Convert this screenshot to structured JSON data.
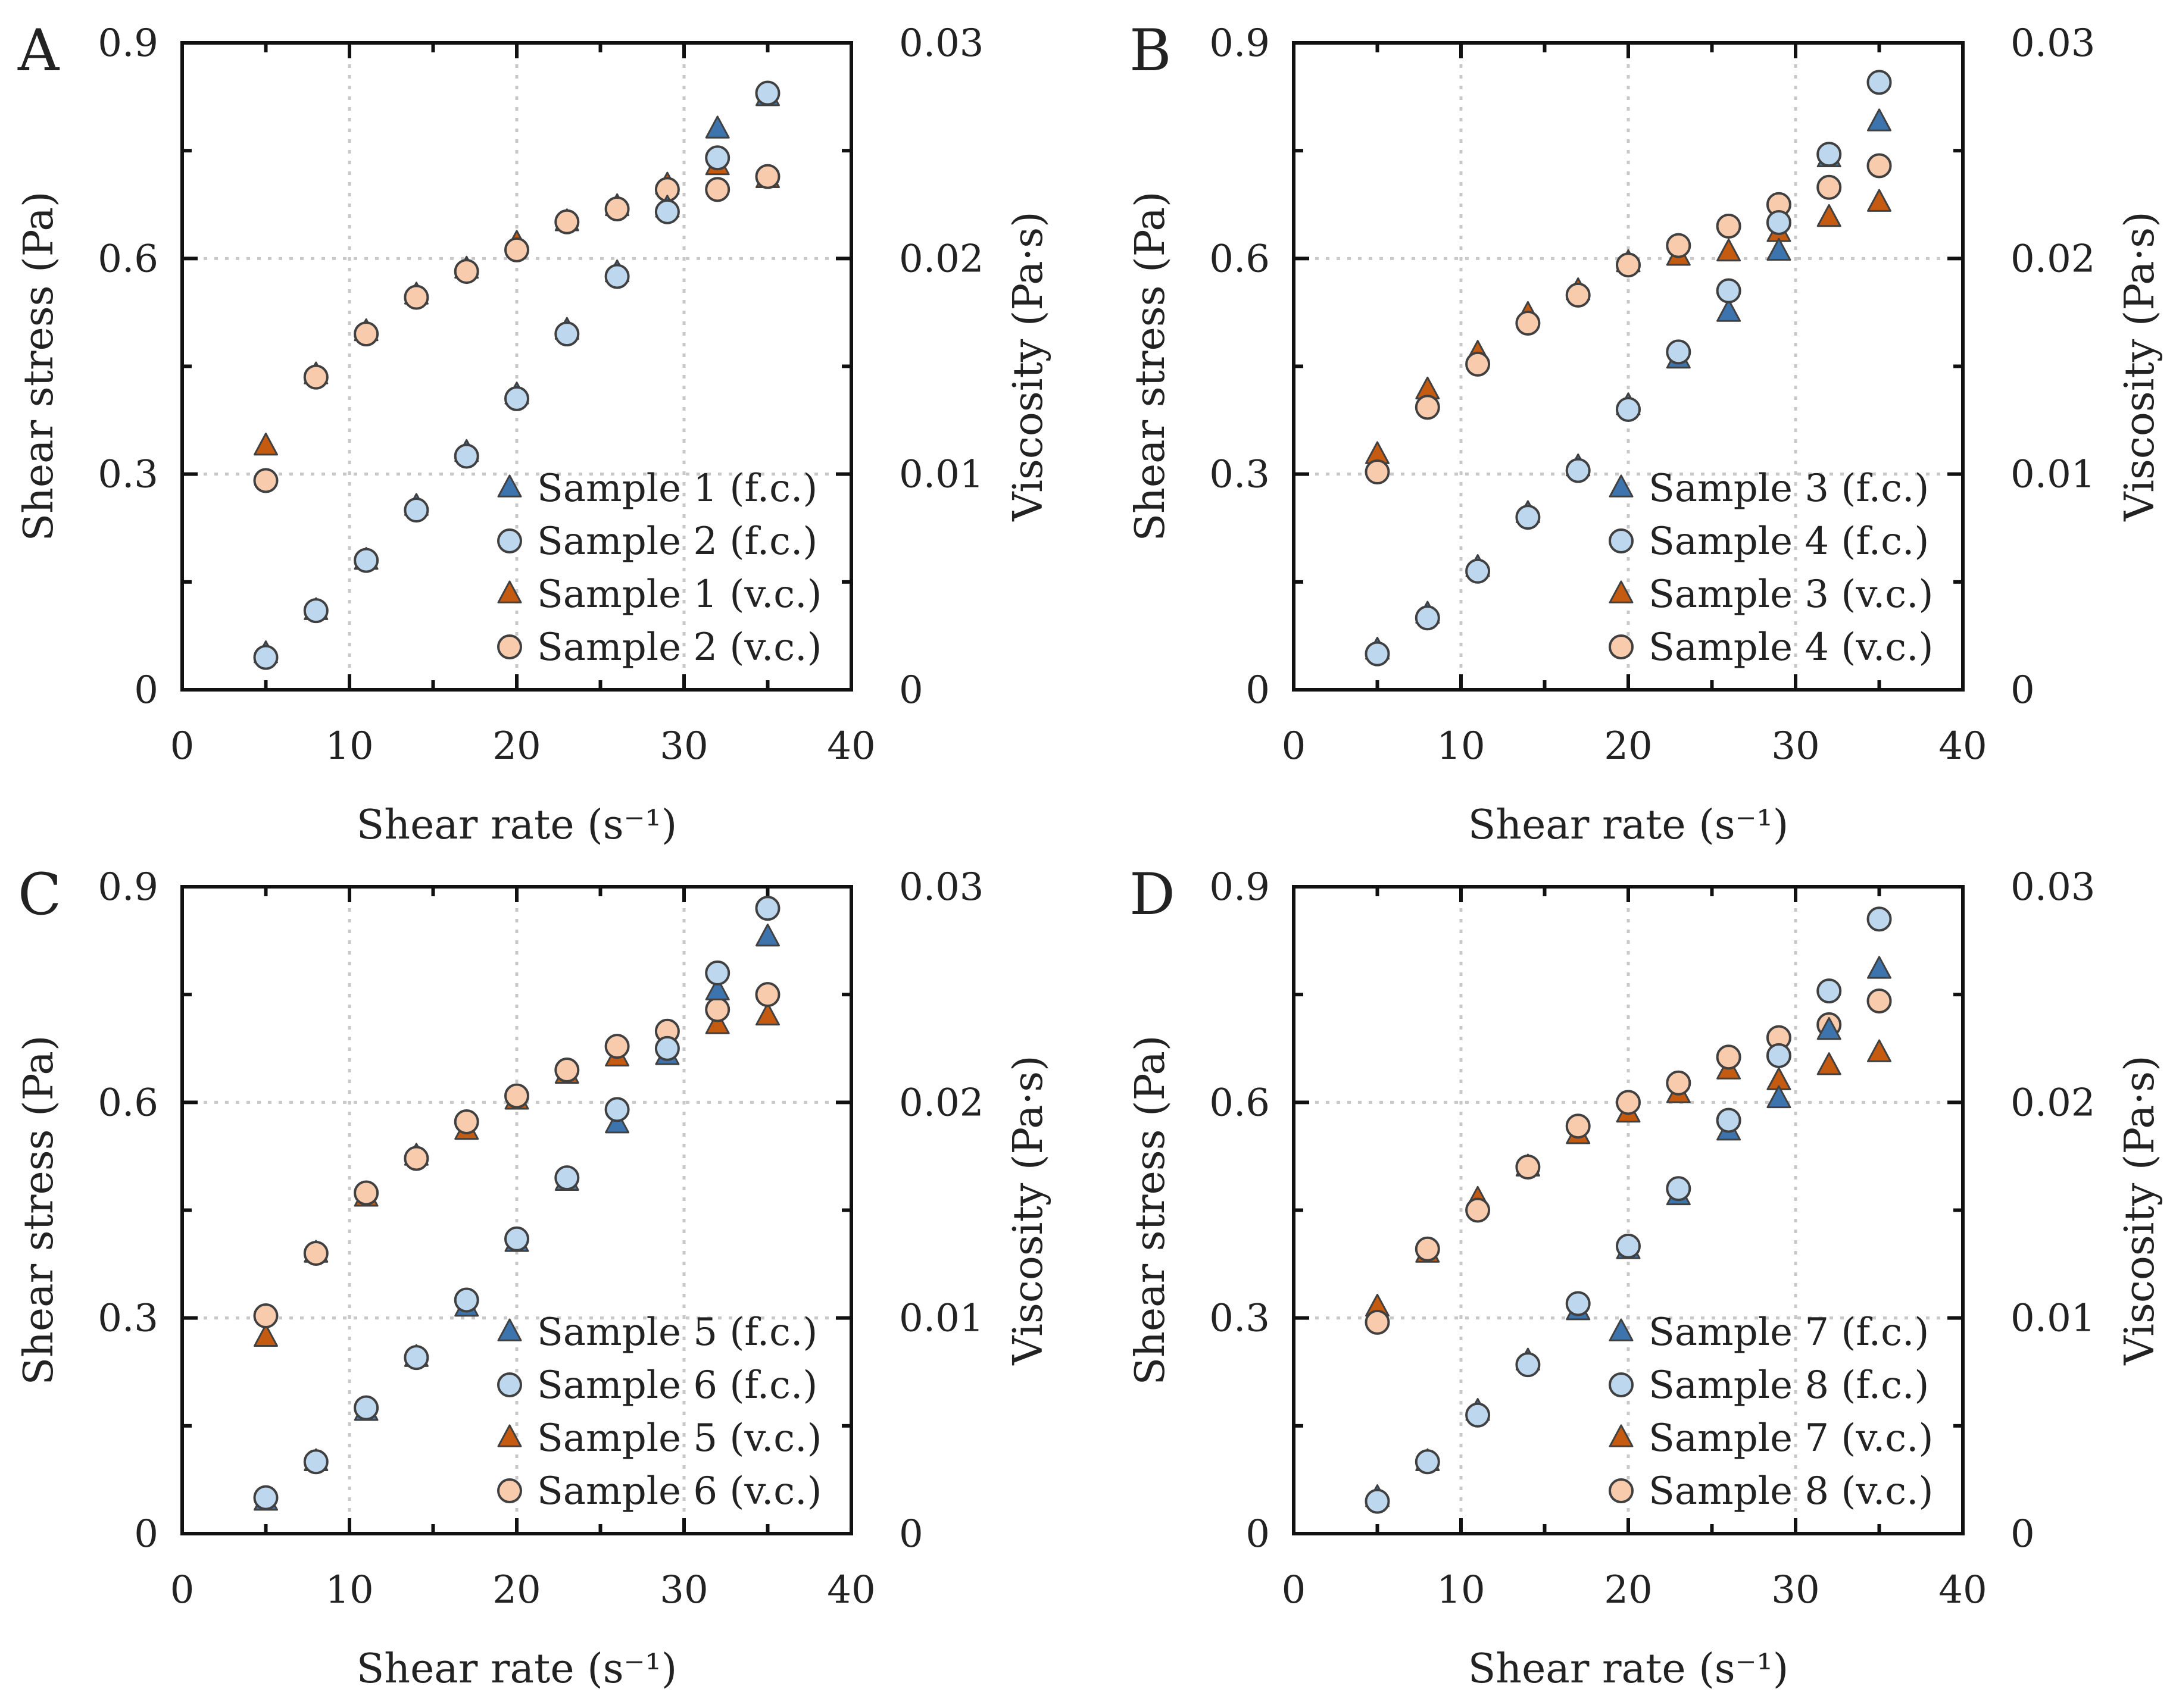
{
  "colors": {
    "fc_triangle": "#3d74ad",
    "fc_circle": "#bdd7ee",
    "vc_triangle": "#c55a11",
    "vc_circle": "#f8cbad",
    "marker_stroke": "#404040"
  },
  "chart_data": [
    {
      "type": "scatter",
      "panel": "A",
      "xlabel": "Shear rate (s⁻¹)",
      "ylabel": "Shear stress (Pa)",
      "y2label": "Viscosity (Pa·s)",
      "xlim": [
        0,
        40
      ],
      "ylim": [
        0,
        0.9
      ],
      "y2lim": [
        0,
        0.03
      ],
      "xticks": [
        "0",
        "10",
        "20",
        "30",
        "40"
      ],
      "yticks": [
        "0",
        "0.3",
        "0.6",
        "0.9"
      ],
      "y2ticks": [
        "0",
        "0.01",
        "0.02",
        "0.03"
      ],
      "grid": true,
      "legend_position": "bottom-right",
      "series": [
        {
          "name": "Sample 1 (f.c.)",
          "marker": "triangle",
          "color_key": "fc_triangle",
          "axis": "y",
          "x": [
            5,
            8,
            11,
            14,
            17,
            20,
            23,
            26,
            29,
            32,
            35
          ],
          "y": [
            0.05,
            0.11,
            0.18,
            0.255,
            0.33,
            0.41,
            0.5,
            0.58,
            0.67,
            0.78,
            0.825
          ]
        },
        {
          "name": "Sample 2 (f.c.)",
          "marker": "circle",
          "color_key": "fc_circle",
          "axis": "y",
          "x": [
            5,
            8,
            11,
            14,
            17,
            20,
            23,
            26,
            29,
            32,
            35
          ],
          "y": [
            0.045,
            0.11,
            0.18,
            0.25,
            0.325,
            0.405,
            0.495,
            0.575,
            0.665,
            0.74,
            0.83
          ]
        },
        {
          "name": "Sample 1 (v.c.)",
          "marker": "triangle",
          "color_key": "vc_triangle",
          "axis": "y2",
          "x": [
            5,
            8,
            11,
            14,
            17,
            20,
            23,
            26,
            29,
            32,
            35
          ],
          "y": [
            0.0113,
            0.0146,
            0.0166,
            0.0183,
            0.0195,
            0.0207,
            0.0217,
            0.0224,
            0.0234,
            0.0243,
            0.0237
          ]
        },
        {
          "name": "Sample 2 (v.c.)",
          "marker": "circle",
          "color_key": "vc_circle",
          "axis": "y2",
          "x": [
            5,
            8,
            11,
            14,
            17,
            20,
            23,
            26,
            29,
            32,
            35
          ],
          "y": [
            0.0097,
            0.0145,
            0.0165,
            0.0182,
            0.0194,
            0.0204,
            0.0217,
            0.0223,
            0.0232,
            0.0232,
            0.0238
          ]
        }
      ]
    },
    {
      "type": "scatter",
      "panel": "B",
      "xlabel": "Shear rate (s⁻¹)",
      "ylabel": "Shear stress (Pa)",
      "y2label": "Viscosity (Pa·s)",
      "xlim": [
        0,
        40
      ],
      "ylim": [
        0,
        0.9
      ],
      "y2lim": [
        0,
        0.03
      ],
      "xticks": [
        "0",
        "10",
        "20",
        "30",
        "40"
      ],
      "yticks": [
        "0",
        "0.3",
        "0.6",
        "0.9"
      ],
      "y2ticks": [
        "0",
        "0.01",
        "0.02",
        "0.03"
      ],
      "grid": true,
      "legend_position": "bottom-right",
      "series": [
        {
          "name": "Sample 3 (f.c.)",
          "marker": "triangle",
          "color_key": "fc_triangle",
          "axis": "y",
          "x": [
            5,
            8,
            11,
            14,
            17,
            20,
            23,
            26,
            29,
            32,
            35
          ],
          "y": [
            0.055,
            0.105,
            0.17,
            0.245,
            0.31,
            0.395,
            0.46,
            0.525,
            0.61,
            0.74,
            0.79
          ]
        },
        {
          "name": "Sample 4 (f.c.)",
          "marker": "circle",
          "color_key": "fc_circle",
          "axis": "y",
          "x": [
            5,
            8,
            11,
            14,
            17,
            20,
            23,
            26,
            29,
            32,
            35
          ],
          "y": [
            0.05,
            0.1,
            0.165,
            0.24,
            0.305,
            0.39,
            0.47,
            0.555,
            0.65,
            0.745,
            0.845
          ]
        },
        {
          "name": "Sample 3 (v.c.)",
          "marker": "triangle",
          "color_key": "vc_triangle",
          "axis": "y2",
          "x": [
            5,
            8,
            11,
            14,
            17,
            20,
            23,
            26,
            29,
            32,
            35
          ],
          "y": [
            0.0109,
            0.0139,
            0.0156,
            0.0174,
            0.0185,
            0.0198,
            0.0201,
            0.0203,
            0.0212,
            0.0219,
            0.0226
          ]
        },
        {
          "name": "Sample 4 (v.c.)",
          "marker": "circle",
          "color_key": "vc_circle",
          "axis": "y2",
          "x": [
            5,
            8,
            11,
            14,
            17,
            20,
            23,
            26,
            29,
            32,
            35
          ],
          "y": [
            0.0101,
            0.0131,
            0.0151,
            0.017,
            0.0183,
            0.0197,
            0.0206,
            0.0215,
            0.0225,
            0.0233,
            0.0243
          ]
        }
      ]
    },
    {
      "type": "scatter",
      "panel": "C",
      "xlabel": "Shear rate (s⁻¹)",
      "ylabel": "Shear stress (Pa)",
      "y2label": "Viscosity (Pa·s)",
      "xlim": [
        0,
        40
      ],
      "ylim": [
        0,
        0.9
      ],
      "y2lim": [
        0,
        0.03
      ],
      "xticks": [
        "0",
        "10",
        "20",
        "30",
        "40"
      ],
      "yticks": [
        "0",
        "0.3",
        "0.6",
        "0.9"
      ],
      "y2ticks": [
        "0",
        "0.01",
        "0.02",
        "0.03"
      ],
      "grid": true,
      "legend_position": "bottom-right",
      "series": [
        {
          "name": "Sample 5 (f.c.)",
          "marker": "triangle",
          "color_key": "fc_triangle",
          "axis": "y",
          "x": [
            5,
            8,
            11,
            14,
            17,
            20,
            23,
            26,
            29,
            32,
            35
          ],
          "y": [
            0.045,
            0.1,
            0.17,
            0.245,
            0.315,
            0.405,
            0.49,
            0.57,
            0.665,
            0.755,
            0.83
          ]
        },
        {
          "name": "Sample 6 (f.c.)",
          "marker": "circle",
          "color_key": "fc_circle",
          "axis": "y",
          "x": [
            5,
            8,
            11,
            14,
            17,
            20,
            23,
            26,
            29,
            32,
            35
          ],
          "y": [
            0.05,
            0.1,
            0.175,
            0.245,
            0.325,
            0.41,
            0.495,
            0.59,
            0.675,
            0.78,
            0.87
          ]
        },
        {
          "name": "Sample 5 (v.c.)",
          "marker": "triangle",
          "color_key": "vc_triangle",
          "axis": "y2",
          "x": [
            5,
            8,
            11,
            14,
            17,
            20,
            23,
            26,
            29,
            32,
            35
          ],
          "y": [
            0.0091,
            0.013,
            0.0156,
            0.0175,
            0.0187,
            0.0201,
            0.0213,
            0.0221,
            0.023,
            0.0236,
            0.024
          ]
        },
        {
          "name": "Sample 6 (v.c.)",
          "marker": "circle",
          "color_key": "vc_circle",
          "axis": "y2",
          "x": [
            5,
            8,
            11,
            14,
            17,
            20,
            23,
            26,
            29,
            32,
            35
          ],
          "y": [
            0.0101,
            0.013,
            0.0158,
            0.0174,
            0.0191,
            0.0203,
            0.0215,
            0.0226,
            0.0233,
            0.0243,
            0.025
          ]
        }
      ]
    },
    {
      "type": "scatter",
      "panel": "D",
      "xlabel": "Shear rate (s⁻¹)",
      "ylabel": "Shear stress (Pa)",
      "y2label": "Viscosity (Pa·s)",
      "xlim": [
        0,
        40
      ],
      "ylim": [
        0,
        0.9
      ],
      "y2lim": [
        0,
        0.03
      ],
      "xticks": [
        "0",
        "10",
        "20",
        "30",
        "40"
      ],
      "yticks": [
        "0",
        "0.3",
        "0.6",
        "0.9"
      ],
      "y2ticks": [
        "0",
        "0.01",
        "0.02",
        "0.03"
      ],
      "grid": true,
      "legend_position": "bottom-right",
      "series": [
        {
          "name": "Sample 7 (f.c.)",
          "marker": "triangle",
          "color_key": "fc_triangle",
          "axis": "y",
          "x": [
            5,
            8,
            11,
            14,
            17,
            20,
            23,
            26,
            29,
            32,
            35
          ],
          "y": [
            0.05,
            0.1,
            0.17,
            0.24,
            0.31,
            0.395,
            0.47,
            0.56,
            0.605,
            0.7,
            0.785
          ]
        },
        {
          "name": "Sample 8 (f.c.)",
          "marker": "circle",
          "color_key": "fc_circle",
          "axis": "y",
          "x": [
            5,
            8,
            11,
            14,
            17,
            20,
            23,
            26,
            29,
            32,
            35
          ],
          "y": [
            0.045,
            0.1,
            0.165,
            0.235,
            0.32,
            0.4,
            0.48,
            0.575,
            0.665,
            0.755,
            0.855
          ]
        },
        {
          "name": "Sample 7 (v.c.)",
          "marker": "triangle",
          "color_key": "vc_triangle",
          "axis": "y2",
          "x": [
            5,
            8,
            11,
            14,
            17,
            20,
            23,
            26,
            29,
            32,
            35
          ],
          "y": [
            0.0105,
            0.013,
            0.0155,
            0.017,
            0.0185,
            0.0195,
            0.0204,
            0.0215,
            0.021,
            0.0217,
            0.0223
          ]
        },
        {
          "name": "Sample 8 (v.c.)",
          "marker": "circle",
          "color_key": "vc_circle",
          "axis": "y2",
          "x": [
            5,
            8,
            11,
            14,
            17,
            20,
            23,
            26,
            29,
            32,
            35
          ],
          "y": [
            0.0098,
            0.0132,
            0.015,
            0.017,
            0.0189,
            0.02,
            0.0209,
            0.0221,
            0.023,
            0.0236,
            0.0247
          ]
        }
      ]
    }
  ]
}
